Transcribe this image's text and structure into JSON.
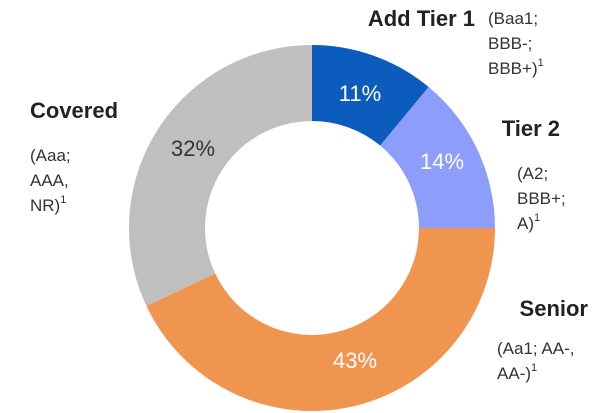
{
  "chart_data": {
    "type": "donut",
    "categories": [
      "Add Tier 1",
      "Tier 2",
      "Senior",
      "Covered"
    ],
    "values": [
      11,
      14,
      43,
      32
    ],
    "value_labels": [
      "11%",
      "14%",
      "43%",
      "32%"
    ],
    "colors": [
      "#0b5cbd",
      "#8c9dfb",
      "#f09550",
      "#bfbfbf"
    ],
    "label_colors": [
      "#ffffff",
      "#ffffff",
      "#ffffff",
      "#333333"
    ],
    "ratings": [
      [
        "(Baa1;",
        "BBB-;",
        "BBB+)"
      ],
      [
        "(A2;",
        "BBB+;",
        "A)"
      ],
      [
        "(Aa1; AA-,",
        "AA-)"
      ],
      [
        "(Aaa;",
        "AAA,",
        "NR)"
      ]
    ],
    "footnotes": [
      "1",
      "1",
      "1",
      "1"
    ]
  }
}
